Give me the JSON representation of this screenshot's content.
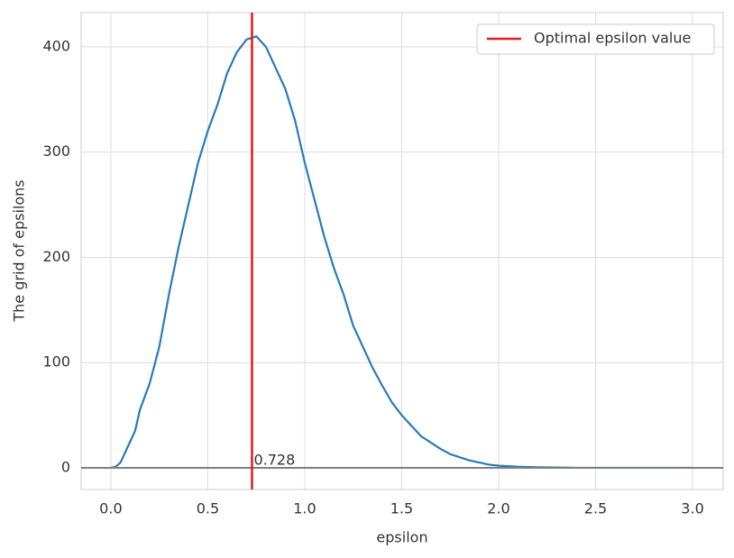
{
  "chart_data": {
    "type": "line",
    "x_label": "epsilon",
    "y_label": "The grid of epsilons",
    "x": [
      0,
      0.025,
      0.05,
      0.1,
      0.125,
      0.15,
      0.2,
      0.25,
      0.3,
      0.35,
      0.4,
      0.45,
      0.5,
      0.55,
      0.6,
      0.65,
      0.7,
      0.75,
      0.8,
      0.85,
      0.9,
      0.95,
      1.0,
      1.05,
      1.1,
      1.15,
      1.2,
      1.25,
      1.3,
      1.35,
      1.4,
      1.45,
      1.5,
      1.55,
      1.6,
      1.65,
      1.7,
      1.75,
      1.8,
      1.85,
      1.9,
      1.95,
      2.0,
      2.1,
      2.2,
      2.4,
      3.0
    ],
    "series": [
      {
        "color": "#2a7ab9",
        "values": [
          0,
          1,
          5,
          25,
          35,
          55,
          80,
          115,
          165,
          210,
          250,
          290,
          320,
          345,
          375,
          395,
          407,
          410,
          400,
          380,
          360,
          330,
          290,
          255,
          220,
          190,
          165,
          135,
          115,
          95,
          78,
          62,
          50,
          40,
          30,
          24,
          18,
          13,
          10,
          7,
          5,
          3,
          2,
          1,
          0.5,
          0,
          0
        ]
      }
    ],
    "hline": {
      "y": 0,
      "color": "#808080"
    },
    "vline": {
      "x": 0.728,
      "color": "#e41a1c",
      "label": "Optimal epsilon value"
    },
    "xlim": [
      -0.153,
      3.158
    ],
    "ylim": [
      -20.6,
      432.5
    ],
    "xticks": [
      {
        "value": 0,
        "label": "0.0"
      },
      {
        "value": 0.5,
        "label": "0.5"
      },
      {
        "value": 1,
        "label": "1.0"
      },
      {
        "value": 1.5,
        "label": "1.5"
      },
      {
        "value": 2,
        "label": "2.0"
      },
      {
        "value": 2.5,
        "label": "2.5"
      },
      {
        "value": 3,
        "label": "3.0"
      }
    ],
    "yticks": [
      0,
      100,
      200,
      300,
      400
    ],
    "grid": true,
    "legend": "upper right"
  }
}
